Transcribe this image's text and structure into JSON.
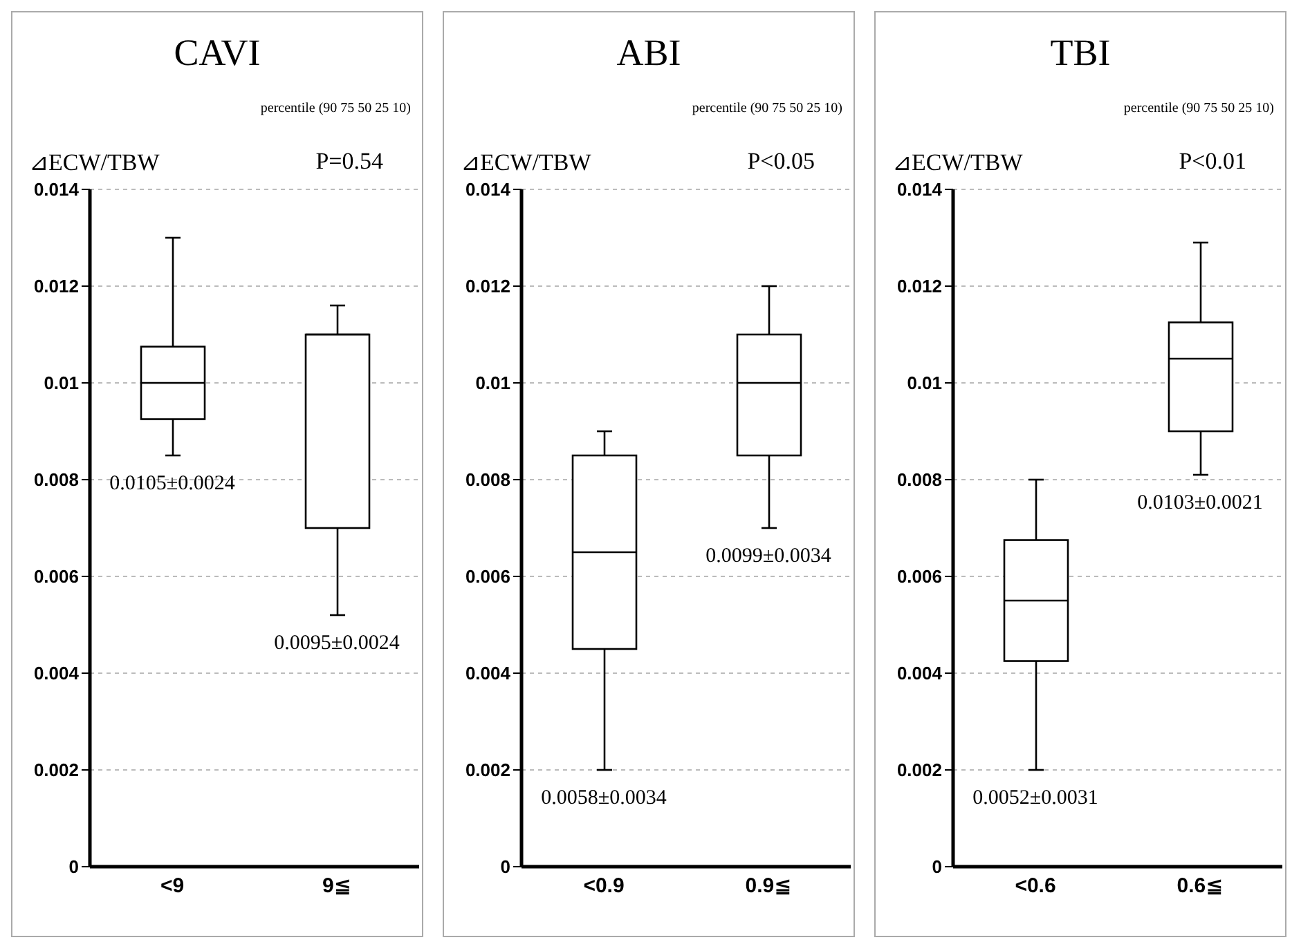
{
  "chart_data": [
    {
      "type": "box",
      "title": "CAVI",
      "subtitle": "percentile (90 75 50 25 10)",
      "ylabel": "⊿ECW/TBW",
      "categories": [
        "<9",
        "9≦"
      ],
      "color": "#000000",
      "boxes": [
        {
          "low": 0.0085,
          "q1": 0.00925,
          "median": 0.01,
          "q3": 0.01075,
          "high": 0.013
        },
        {
          "low": 0.0052,
          "q1": 0.007,
          "median": 0.011,
          "q3": 0.011,
          "high": 0.0116
        }
      ],
      "ylim": [
        0,
        0.014
      ],
      "yticks": [
        0,
        0.002,
        0.004,
        0.006,
        0.008,
        0.01,
        0.012,
        0.014
      ],
      "grid": "y",
      "annotations": [
        "P=0.54",
        "0.0105±0.0024",
        "0.0095±0.0024"
      ]
    },
    {
      "type": "box",
      "title": "ABI",
      "subtitle": "percentile (90 75 50 25 10)",
      "ylabel": "⊿ECW/TBW",
      "categories": [
        "<0.9",
        "0.9≦"
      ],
      "color": "#000000",
      "boxes": [
        {
          "low": 0.002,
          "q1": 0.0045,
          "median": 0.0065,
          "q3": 0.0085,
          "high": 0.009
        },
        {
          "low": 0.007,
          "q1": 0.0085,
          "median": 0.01,
          "q3": 0.011,
          "high": 0.012
        }
      ],
      "ylim": [
        0,
        0.014
      ],
      "yticks": [
        0,
        0.002,
        0.004,
        0.006,
        0.008,
        0.01,
        0.012,
        0.014
      ],
      "grid": "y",
      "annotations": [
        "P<0.05",
        "0.0058±0.0034",
        "0.0099±0.0034"
      ]
    },
    {
      "type": "box",
      "title": "TBI",
      "subtitle": "percentile (90 75 50 25 10)",
      "ylabel": "⊿ECW/TBW",
      "categories": [
        "<0.6",
        "0.6≦"
      ],
      "color": "#000000",
      "boxes": [
        {
          "low": 0.002,
          "q1": 0.00425,
          "median": 0.0055,
          "q3": 0.00675,
          "high": 0.008
        },
        {
          "low": 0.0081,
          "q1": 0.009,
          "median": 0.0105,
          "q3": 0.01125,
          "high": 0.0129
        }
      ],
      "ylim": [
        0,
        0.014
      ],
      "yticks": [
        0,
        0.002,
        0.004,
        0.006,
        0.008,
        0.01,
        0.012,
        0.014
      ],
      "grid": "y",
      "annotations": [
        "P<0.01",
        "0.0052±0.0031",
        "0.0103±0.0021"
      ]
    }
  ]
}
